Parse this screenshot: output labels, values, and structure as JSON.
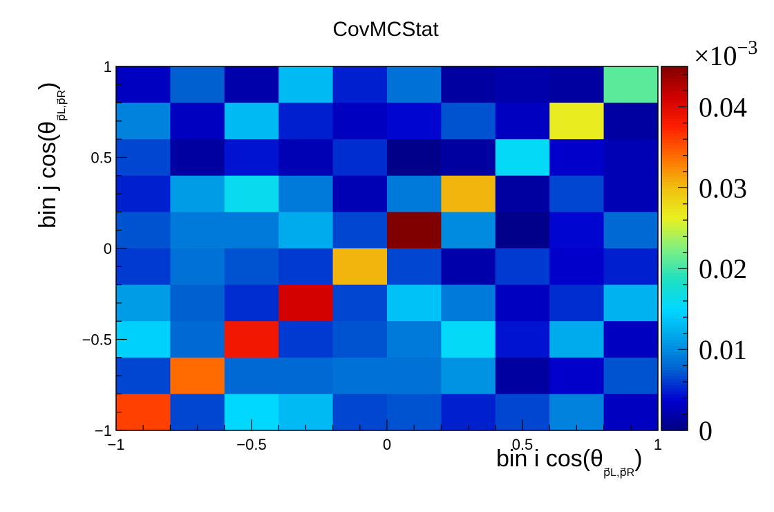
{
  "chart_data": {
    "type": "heatmap",
    "title": "CovMCStat",
    "xlabel": {
      "main": "bin i cos(θ",
      "sub": "p⃗L,p⃗R",
      "close": ")"
    },
    "ylabel": {
      "main": "bin j cos(θ",
      "sub": "p⃗L,p⃗R",
      "close": ")"
    },
    "xlim": [
      -1,
      1
    ],
    "ylim": [
      -1,
      1
    ],
    "nx": 10,
    "ny": 10,
    "x_ticks": [
      "−1",
      "−0.5",
      "0",
      "0.5",
      "1"
    ],
    "y_ticks": [
      "−1",
      "−0.5",
      "0",
      "0.5",
      "1"
    ],
    "z_exponent": "×10",
    "z_exponent_power": "−3",
    "z_ticks": [
      "0",
      "0.01",
      "0.02",
      "0.03",
      "0.04"
    ],
    "zlim": [
      0,
      0.045
    ],
    "colormap": [
      "#000080",
      "#0000d0",
      "#0060d0",
      "#00a0e8",
      "#00d8ff",
      "#20e0c0",
      "#80f080",
      "#e8f020",
      "#f0c010",
      "#ff7000",
      "#ff2000",
      "#d00000",
      "#800000"
    ],
    "values_rows_top_to_bottom": [
      [
        0.003,
        0.0075,
        0.002,
        0.013,
        0.005,
        0.0085,
        0.0015,
        0.002,
        0.0015,
        0.021
      ],
      [
        0.0095,
        0.003,
        0.013,
        0.005,
        0.003,
        0.004,
        0.007,
        0.003,
        0.0265,
        0.0015
      ],
      [
        0.0065,
        0.0015,
        0.0045,
        0.0025,
        0.0055,
        0.0005,
        0.0015,
        0.0155,
        0.0035,
        0.0025
      ],
      [
        0.005,
        0.011,
        0.016,
        0.009,
        0.0025,
        0.009,
        0.0305,
        0.0015,
        0.0065,
        0.0025
      ],
      [
        0.007,
        0.009,
        0.009,
        0.012,
        0.0065,
        0.045,
        0.01,
        0.0005,
        0.004,
        0.008
      ],
      [
        0.006,
        0.0085,
        0.007,
        0.006,
        0.0305,
        0.0065,
        0.002,
        0.006,
        0.0035,
        0.005
      ],
      [
        0.011,
        0.0075,
        0.0055,
        0.041,
        0.0065,
        0.0135,
        0.009,
        0.003,
        0.0055,
        0.0125
      ],
      [
        0.0145,
        0.008,
        0.0385,
        0.006,
        0.007,
        0.009,
        0.0155,
        0.0045,
        0.012,
        0.003
      ],
      [
        0.0065,
        0.034,
        0.008,
        0.008,
        0.0085,
        0.0085,
        0.0105,
        0.0015,
        0.0035,
        0.007
      ],
      [
        0.036,
        0.0065,
        0.015,
        0.013,
        0.0065,
        0.007,
        0.005,
        0.0065,
        0.0095,
        0.003
      ]
    ]
  }
}
